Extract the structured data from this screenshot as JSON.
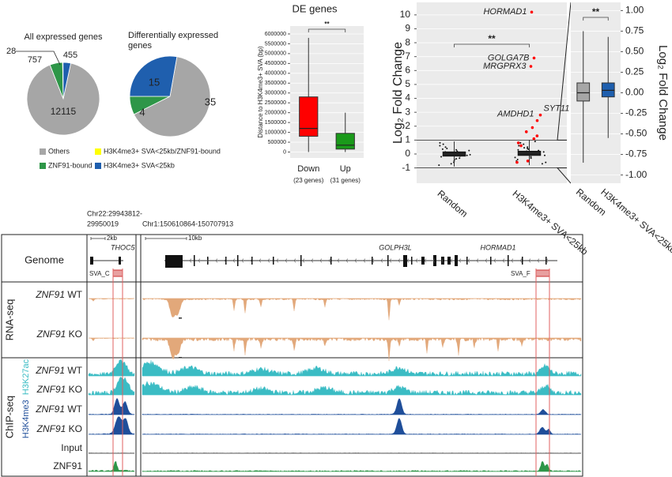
{
  "chart_data": [
    {
      "type": "pie",
      "title": "All expressed genes",
      "categories": [
        "Others",
        "ZNF91-bound",
        "H3K4me3+ SVA<25kb/ZNF91-bound",
        "H3K4me3+ SVA<25kb"
      ],
      "values": [
        12115,
        757,
        28,
        455
      ],
      "colors": [
        "#a6a6a6",
        "#2e9648",
        "#ffff00",
        "#1f5fae"
      ]
    },
    {
      "type": "pie",
      "title": "Differentially expressed genes",
      "values": [
        35,
        4,
        15
      ],
      "colors": [
        "#a6a6a6",
        "#2e9648",
        "#1f5fae"
      ]
    },
    {
      "type": "box",
      "title": "DE genes",
      "ylabel": "Distance to H3K4me3+ SVA (bp)",
      "categories": [
        "Down",
        "Up"
      ],
      "sublabels": [
        "(23 genes)",
        "(31 genes)"
      ],
      "colors": [
        "#ff0000",
        "#1a9a1a"
      ],
      "boxes": [
        [
          0,
          800000,
          1200000,
          2800000,
          5800000
        ],
        [
          0,
          150000,
          350000,
          950000,
          2000000
        ]
      ],
      "ylim": [
        -300000,
        6400000
      ],
      "yticks": [
        0,
        500000,
        1000000,
        1500000,
        2000000,
        2500000,
        3000000,
        3500000,
        4000000,
        4500000,
        5000000,
        5500000,
        6000000
      ],
      "grid": true,
      "annotation": "**"
    },
    {
      "type": "strip",
      "ylabel": "Log₂ Fold Change",
      "categories": [
        "Random",
        "H3K4me3+ SVA<25kb"
      ],
      "points": [
        [
          -0.6,
          0.3,
          -0.2,
          0.5,
          0.1,
          -0.4,
          0.8,
          -0.1,
          0.2,
          -0.7,
          0.4,
          0,
          -0.3,
          0.6,
          -0.5,
          0.15,
          -0.15,
          0.35,
          -0.35,
          0.05,
          0.7,
          -0.8,
          0.25,
          -0.05
        ],
        [
          -0.5,
          0.4,
          -0.1,
          0.6,
          0.2,
          -0.3,
          0.9,
          0,
          0.3,
          -0.6,
          0.5,
          0.1,
          -0.2,
          0.7,
          -0.4,
          0.25,
          -0.05,
          0.45,
          -0.25,
          0.15,
          0.8,
          -0.7,
          0.35,
          0.05
        ]
      ],
      "boxes": [
        [
          -0.9,
          -0.15,
          0,
          0.15,
          0.9
        ],
        [
          -0.8,
          -0.1,
          0.05,
          0.2,
          1
        ]
      ],
      "highlight": {
        "color": "#ff0000",
        "values": [
          10.2,
          6.9,
          6.3,
          2.8,
          2.4,
          1.9,
          1.6,
          1.3,
          1.1,
          0.8,
          0.6,
          -0.5,
          -0.6
        ]
      },
      "highlight_labels": [
        "HORMAD1",
        "GOLGA7B",
        "MRGPRX3",
        "SYT11",
        "AMDHD1"
      ],
      "thresholds": [
        1,
        -1
      ],
      "ylim": [
        -2.1,
        10.9
      ],
      "yticks": [
        -1,
        0,
        1,
        2,
        3,
        4,
        5,
        6,
        7,
        8,
        9,
        10
      ],
      "grid": true,
      "annotation": "**"
    },
    {
      "type": "box",
      "ylabel": "Log₂ Fold Change",
      "categories": [
        "Random",
        "H3K4me3+ SVA<25kb"
      ],
      "colors": [
        "#a6a6a6",
        "#1f5fae"
      ],
      "boxes": [
        [
          -0.85,
          -0.1,
          0,
          0.12,
          0.75
        ],
        [
          -0.55,
          -0.05,
          0.03,
          0.12,
          0.68
        ]
      ],
      "ylim": [
        -1.1,
        1.1
      ],
      "yticks": [
        {
          "value": -1,
          "label": "-1.00"
        },
        {
          "value": -0.75,
          "label": "-0.75"
        },
        {
          "value": -0.5,
          "label": "-0.50"
        },
        {
          "value": -0.25,
          "label": "-0.25"
        },
        {
          "value": 0,
          "label": "0.00"
        },
        {
          "value": 0.25,
          "label": "0.25"
        },
        {
          "value": 0.5,
          "label": "0.50"
        },
        {
          "value": 0.75,
          "label": "0.75"
        },
        {
          "value": 1,
          "label": "1.00"
        }
      ],
      "grid": true,
      "annotation": "**",
      "axis_side": "right"
    }
  ],
  "browser": {
    "sections": [
      "Genome",
      "RNA-seq",
      "ChIP-seq"
    ],
    "left": {
      "coords": [
        "Chr22:29943812-",
        "29950019"
      ],
      "scale": "2kb",
      "gene": "THOC5",
      "sva": "SVA_C"
    },
    "right": {
      "coords": [
        "Chr1:150610864-150707913"
      ],
      "scale": "10kb",
      "genes": [
        "GOLPH3L",
        "HORMAD1"
      ],
      "sva": "SVA_F"
    },
    "rna_color": "#e2a87a",
    "rna_tracks": [
      {
        "gene": "ZNF91",
        "condition": "WT"
      },
      {
        "gene": "ZNF91",
        "condition": "KO"
      }
    ],
    "chip_marks": [
      {
        "label": "H3K4me3",
        "color": "#1f4e9a"
      },
      {
        "label": "H3K27ac",
        "color": "#3bbcc4"
      }
    ],
    "chip_tracks": [
      {
        "gene": "ZNF91",
        "condition": "WT",
        "color": "#3bbcc4"
      },
      {
        "gene": "ZNF91",
        "condition": "KO",
        "color": "#3bbcc4"
      },
      {
        "gene": "ZNF91",
        "condition": "WT",
        "color": "#1f4e9a"
      },
      {
        "gene": "ZNF91",
        "condition": "KO",
        "color": "#1f4e9a"
      },
      {
        "label": "Input",
        "color": "#222222"
      },
      {
        "label": "ZNF91",
        "color": "#2e9648"
      }
    ]
  }
}
